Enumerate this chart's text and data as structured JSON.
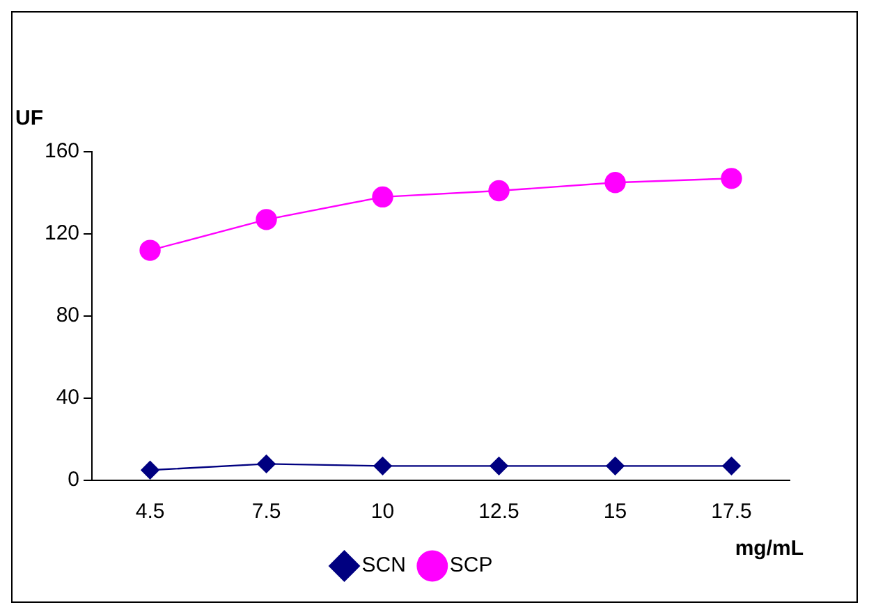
{
  "chart_data": {
    "type": "line",
    "ylabel": "UF",
    "xlabel": "mg/mL",
    "categories": [
      "4.5",
      "7.5",
      "10",
      "12.5",
      "15",
      "17.5"
    ],
    "ylim": [
      0,
      160
    ],
    "yticks": [
      0,
      40,
      80,
      120,
      160
    ],
    "grid": false,
    "legend": "bottom",
    "series": [
      {
        "name": "SCN",
        "color": "#000080",
        "marker": "diamond",
        "values": [
          5,
          8,
          7,
          7,
          7,
          7
        ]
      },
      {
        "name": "SCP",
        "color": "#ff00ff",
        "marker": "circle",
        "values": [
          112,
          127,
          138,
          141,
          145,
          147
        ]
      }
    ]
  }
}
